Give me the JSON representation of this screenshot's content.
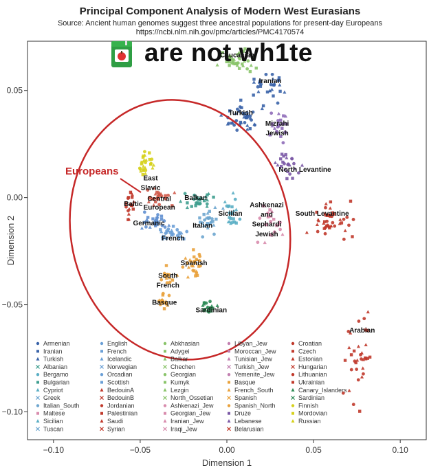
{
  "title": "Principal Component Analysis of Modern West Eurasians",
  "source_line": "Source: Ancient human genomes suggest three ancestral populations for present-day Europeans",
  "source_url": "https://ncbi.nlm.nih.gov/pmc/articles/PMC4170574",
  "meme_caption": "are not wh1te",
  "juice_icon": "juice-box-icon",
  "chart_data": {
    "type": "scatter",
    "title": "Principal Component Analysis of Modern West Eurasians",
    "xlabel": "Dimension 1",
    "ylabel": "Dimension 2",
    "xlim": [
      -0.115,
      0.115
    ],
    "ylim": [
      -0.113,
      0.073
    ],
    "xticks": [
      -0.1,
      -0.05,
      0.0,
      0.05,
      0.1
    ],
    "xtick_labels": [
      "−0.10",
      "−0.05",
      "0.00",
      "0.05",
      "0.10"
    ],
    "yticks": [
      -0.1,
      -0.05,
      0.0,
      0.05
    ],
    "ytick_labels": [
      "−0.10",
      "−0.05",
      "0.00",
      "0.05"
    ],
    "grid": false,
    "legend_position": "bottom-left inside",
    "highlight": {
      "label": "Europeans",
      "color": "#c62828",
      "cx": -0.027,
      "cy": -0.015,
      "rx": 0.063,
      "ry": 0.061,
      "rotate_deg": -12
    },
    "clusters": [
      {
        "label": "Caucasian",
        "cx": 0.006,
        "cy": 0.064,
        "spread": [
          0.01,
          0.005
        ],
        "color": "#8ac46a",
        "n": 36
      },
      {
        "label": "Iranian",
        "cx": 0.024,
        "cy": 0.052,
        "spread": [
          0.008,
          0.006
        ],
        "color": "#3a63a8",
        "n": 28
      },
      {
        "label": "Turkish",
        "cx": 0.009,
        "cy": 0.038,
        "spread": [
          0.01,
          0.006
        ],
        "color": "#3a63a8",
        "n": 40
      },
      {
        "label": "Mizrahi Jewish",
        "cx": 0.03,
        "cy": 0.033,
        "spread": [
          0.006,
          0.006
        ],
        "color": "#8e6ab8",
        "n": 24
      },
      {
        "label": "North Levantine",
        "cx": 0.035,
        "cy": 0.016,
        "spread": [
          0.006,
          0.008
        ],
        "color": "#7b59a6",
        "n": 24
      },
      {
        "label": "South Levantine",
        "cx": 0.06,
        "cy": -0.012,
        "spread": [
          0.012,
          0.008
        ],
        "color": "#c0392b",
        "n": 44
      },
      {
        "label": "Arabian",
        "cx": 0.076,
        "cy": -0.075,
        "spread": [
          0.008,
          0.02
        ],
        "color": "#c0392b",
        "n": 34
      },
      {
        "label": "Ashkenazi and Sephardi Jewish",
        "cx": 0.027,
        "cy": -0.013,
        "spread": [
          0.007,
          0.01
        ],
        "color": "#d88cad",
        "n": 22
      },
      {
        "label": "Sicilian",
        "cx": 0.003,
        "cy": -0.007,
        "spread": [
          0.004,
          0.008
        ],
        "color": "#5aaec4",
        "n": 22
      },
      {
        "label": "Balkan",
        "cx": -0.017,
        "cy": -0.001,
        "spread": [
          0.009,
          0.004
        ],
        "color": "#3f9e8f",
        "n": 26
      },
      {
        "label": "Italian",
        "cx": -0.011,
        "cy": -0.01,
        "spread": [
          0.007,
          0.006
        ],
        "color": "#6ea6cf",
        "n": 26
      },
      {
        "label": "East Slavic",
        "cx": -0.047,
        "cy": 0.015,
        "spread": [
          0.004,
          0.007
        ],
        "color": "#d6d11c",
        "n": 26
      },
      {
        "label": "Baltic",
        "cx": -0.055,
        "cy": -0.003,
        "spread": [
          0.004,
          0.006
        ],
        "color": "#c0392b",
        "n": 18
      },
      {
        "label": "Central European",
        "cx": -0.04,
        "cy": 0.0,
        "spread": [
          0.007,
          0.004
        ],
        "color": "#d05a4a",
        "n": 28
      },
      {
        "label": "Germanic",
        "cx": -0.041,
        "cy": -0.011,
        "spread": [
          0.008,
          0.004
        ],
        "color": "#5f8fd0",
        "n": 30
      },
      {
        "label": "French",
        "cx": -0.031,
        "cy": -0.016,
        "spread": [
          0.007,
          0.004
        ],
        "color": "#6a9fd6",
        "n": 26
      },
      {
        "label": "Spanish",
        "cx": -0.019,
        "cy": -0.031,
        "spread": [
          0.006,
          0.006
        ],
        "color": "#e9a13b",
        "n": 28
      },
      {
        "label": "South French",
        "cx": -0.034,
        "cy": -0.037,
        "spread": [
          0.004,
          0.005
        ],
        "color": "#e9a13b",
        "n": 16
      },
      {
        "label": "Basque",
        "cx": -0.036,
        "cy": -0.048,
        "spread": [
          0.004,
          0.004
        ],
        "color": "#e9a13b",
        "n": 16
      },
      {
        "label": "Sardinian",
        "cx": -0.01,
        "cy": -0.052,
        "spread": [
          0.004,
          0.004
        ],
        "color": "#2e8b57",
        "n": 20
      }
    ],
    "label_positions": [
      {
        "text": "Caucasian",
        "x": 0.006,
        "y": 0.0655
      },
      {
        "text": "Iranian",
        "x": 0.025,
        "y": 0.0535
      },
      {
        "text": "Turkish",
        "x": 0.008,
        "y": 0.0385
      },
      {
        "text": "Mizrahi",
        "x": 0.029,
        "y": 0.0335
      },
      {
        "text": "Jewish",
        "x": 0.029,
        "y": 0.029
      },
      {
        "text": "North Levantine",
        "x": 0.045,
        "y": 0.012
      },
      {
        "text": "East",
        "x": -0.044,
        "y": 0.008
      },
      {
        "text": "Slavic",
        "x": -0.044,
        "y": 0.0035
      },
      {
        "text": "Balkan",
        "x": -0.018,
        "y": -0.001
      },
      {
        "text": "Central",
        "x": -0.039,
        "y": -0.0015
      },
      {
        "text": "European",
        "x": -0.039,
        "y": -0.0055
      },
      {
        "text": "Baltic",
        "x": -0.054,
        "y": -0.004
      },
      {
        "text": "Ashkenazi",
        "x": 0.023,
        "y": -0.0045
      },
      {
        "text": "and",
        "x": 0.023,
        "y": -0.009
      },
      {
        "text": "Sephardi",
        "x": 0.023,
        "y": -0.0135
      },
      {
        "text": "Jewish",
        "x": 0.023,
        "y": -0.018
      },
      {
        "text": "Sicilian",
        "x": 0.002,
        "y": -0.0085
      },
      {
        "text": "South Levantine",
        "x": 0.055,
        "y": -0.0085
      },
      {
        "text": "Germanic",
        "x": -0.045,
        "y": -0.013
      },
      {
        "text": "Italian",
        "x": -0.014,
        "y": -0.014
      },
      {
        "text": "French",
        "x": -0.031,
        "y": -0.02
      },
      {
        "text": "Spanish",
        "x": -0.019,
        "y": -0.0315
      },
      {
        "text": "South",
        "x": -0.034,
        "y": -0.0375
      },
      {
        "text": "French",
        "x": -0.034,
        "y": -0.042
      },
      {
        "text": "Basque",
        "x": -0.036,
        "y": -0.05
      },
      {
        "text": "Sardinian",
        "x": -0.009,
        "y": -0.0535
      },
      {
        "text": "Arabian",
        "x": 0.078,
        "y": -0.063
      }
    ],
    "legend": [
      [
        "Armenian",
        "Iranian",
        "Turkish",
        "Albanian",
        "Bergamo",
        "Bulgarian",
        "Cypriot",
        "Greek",
        "Italian_South",
        "Maltese",
        "Sicilian",
        "Tuscan"
      ],
      [
        "English",
        "French",
        "Icelandic",
        "Norwegian",
        "Orcadian",
        "Scottish",
        "BedouinA",
        "BedouinB",
        "Jordanian",
        "Palestinian",
        "Saudi",
        "Syrian"
      ],
      [
        "Abkhasian",
        "Adygei",
        "Balkar",
        "Chechen",
        "Georgian",
        "Kumyk",
        "Lezgin",
        "North_Ossetian",
        "Ashkenazi_Jew",
        "Georgian_Jew",
        "Iranian_Jew",
        "Iraqi_Jew"
      ],
      [
        "Libyan_Jew",
        "Moroccan_Jew",
        "Tunisian_Jew",
        "Turkish_Jew",
        "Yemenite_Jew",
        "Basque",
        "French_South",
        "Spanish",
        "Spanish_North",
        "Druze",
        "Lebanese",
        "Belarusian"
      ],
      [
        "Croatian",
        "Czech",
        "Estonian",
        "Hungarian",
        "Lithuanian",
        "Ukrainian",
        "Canary_Islanders",
        "Sardinian",
        "Finnish",
        "Mordovian",
        "Russian"
      ]
    ],
    "legend_colors": [
      "#3a63a8",
      "#6a9fd6",
      "#8ac46a",
      "#c27fb0",
      "#c0392b"
    ],
    "legend_marker_colors": [
      [
        "#3a63a8",
        "#3a63a8",
        "#3a63a8",
        "#3f9e8f",
        "#5aaec4",
        "#3f9e8f",
        "#5aaec4",
        "#6ea6cf",
        "#6ea6cf",
        "#d88cad",
        "#5aaec4",
        "#6ea6cf"
      ],
      [
        "#6a9fd6",
        "#6a9fd6",
        "#6a9fd6",
        "#6a9fd6",
        "#6a9fd6",
        "#6a9fd6",
        "#c0392b",
        "#c0392b",
        "#c0392b",
        "#c0392b",
        "#c0392b",
        "#c0392b"
      ],
      [
        "#8ac46a",
        "#8ac46a",
        "#8ac46a",
        "#8ac46a",
        "#8ac46a",
        "#8ac46a",
        "#8ac46a",
        "#8ac46a",
        "#d88cad",
        "#d88cad",
        "#d88cad",
        "#d88cad"
      ],
      [
        "#c27fb0",
        "#c27fb0",
        "#c27fb0",
        "#c27fb0",
        "#c27fb0",
        "#e9a13b",
        "#e9a13b",
        "#e9a13b",
        "#e9a13b",
        "#7b59a6",
        "#7b59a6",
        "#c0392b"
      ],
      [
        "#c0392b",
        "#c0392b",
        "#c0392b",
        "#c0392b",
        "#c0392b",
        "#c0392b",
        "#2e8b57",
        "#2e8b57",
        "#d6d11c",
        "#d6d11c",
        "#d6d11c"
      ]
    ]
  }
}
